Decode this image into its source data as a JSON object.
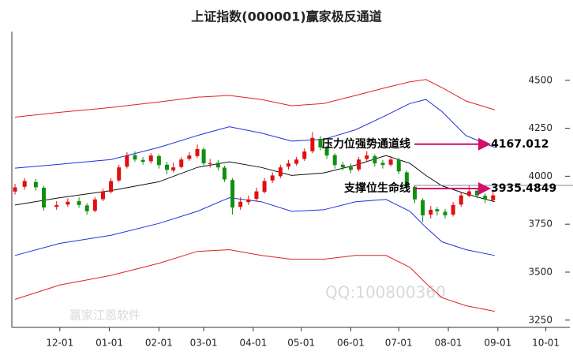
{
  "chart_data": {
    "type": "candlestick",
    "title": "上证指数(000001)赢家极反通道",
    "xlim": [
      0,
      349
    ],
    "ylim": [
      3212,
      4754
    ],
    "yticks": [
      3250,
      3500,
      3750,
      4000,
      4250,
      4500
    ],
    "xticks": [
      {
        "value": 30,
        "label": "12-01"
      },
      {
        "value": 61,
        "label": "01-01"
      },
      {
        "value": 92,
        "label": "02-01"
      },
      {
        "value": 120,
        "label": "03-01"
      },
      {
        "value": 151,
        "label": "04-01"
      },
      {
        "value": 181,
        "label": "05-01"
      },
      {
        "value": 212,
        "label": "06-01"
      },
      {
        "value": 242,
        "label": "07-01"
      },
      {
        "value": 273,
        "label": "08-01"
      },
      {
        "value": 304,
        "label": "09-01"
      },
      {
        "value": 334,
        "label": "10-01"
      }
    ],
    "up_color": "#e01010",
    "down_color": "#109010",
    "candles": {
      "x": [
        2,
        8,
        15,
        20,
        28,
        35,
        42,
        47,
        52,
        57,
        62,
        67,
        72,
        77,
        82,
        87,
        92,
        97,
        101,
        106,
        111,
        116,
        120,
        124,
        129,
        133,
        138,
        143,
        148,
        153,
        158,
        163,
        168,
        173,
        178,
        183,
        188,
        193,
        197,
        202,
        207,
        212,
        217,
        222,
        227,
        232,
        237,
        242,
        247,
        252,
        257,
        262,
        266,
        271,
        276,
        281,
        286,
        291,
        296,
        301
      ],
      "open": [
        3920,
        3945,
        3970,
        3940,
        3840,
        3852,
        3870,
        3848,
        3820,
        3880,
        3918,
        3978,
        4050,
        4110,
        4085,
        4078,
        4105,
        4060,
        4030,
        4048,
        4090,
        4105,
        4140,
        4065,
        4070,
        4045,
        3980,
        3840,
        3865,
        3882,
        3918,
        3978,
        4000,
        4050,
        4065,
        4090,
        4130,
        4195,
        4148,
        4110,
        4060,
        4048,
        4035,
        4090,
        4105,
        4070,
        4060,
        4085,
        4020,
        3945,
        3875,
        3800,
        3828,
        3815,
        3800,
        3852,
        3898,
        3925,
        3898,
        3875
      ],
      "close": [
        3942,
        3975,
        3942,
        3837,
        3850,
        3867,
        3850,
        3817,
        3879,
        3921,
        3975,
        4046,
        4108,
        4087,
        4075,
        4108,
        4058,
        4033,
        4046,
        4087,
        4108,
        4142,
        4067,
        4067,
        4046,
        3983,
        3837,
        3867,
        3879,
        3921,
        3975,
        4004,
        4046,
        4067,
        4087,
        4129,
        4200,
        4150,
        4108,
        4058,
        4046,
        4033,
        4087,
        4108,
        4067,
        4058,
        4087,
        4025,
        3942,
        3879,
        3796,
        3825,
        3817,
        3796,
        3850,
        3900,
        3921,
        3900,
        3879,
        3900
      ],
      "high": [
        3960,
        3990,
        3985,
        3950,
        3870,
        3885,
        3890,
        3860,
        3890,
        3935,
        3990,
        4060,
        4125,
        4130,
        4100,
        4120,
        4115,
        4075,
        4070,
        4100,
        4125,
        4165,
        4150,
        4090,
        4085,
        4055,
        3990,
        3890,
        3900,
        3940,
        3990,
        4020,
        4060,
        4085,
        4100,
        4145,
        4230,
        4210,
        4160,
        4120,
        4075,
        4065,
        4100,
        4130,
        4115,
        4085,
        4105,
        4095,
        4030,
        3955,
        3885,
        3845,
        3840,
        3830,
        3865,
        3915,
        3950,
        3935,
        3910,
        3918
      ],
      "low": [
        3905,
        3930,
        3925,
        3820,
        3825,
        3840,
        3835,
        3800,
        3812,
        3870,
        3910,
        3970,
        4040,
        4075,
        4060,
        4065,
        4040,
        4010,
        4020,
        4040,
        4080,
        4095,
        4055,
        4045,
        4030,
        3970,
        3800,
        3825,
        3850,
        3870,
        3910,
        3965,
        3990,
        4035,
        4055,
        4080,
        4120,
        4135,
        4090,
        4040,
        4030,
        4015,
        4025,
        4080,
        4050,
        4040,
        4050,
        4010,
        3925,
        3860,
        3760,
        3780,
        3795,
        3780,
        3790,
        3840,
        3890,
        3885,
        3860,
        3865
      ]
    },
    "x": [
      2,
      30,
      62,
      92,
      116,
      136,
      156,
      175,
      195,
      215,
      234,
      249,
      259,
      269,
      284,
      302
    ],
    "series": [
      {
        "color": "#e02020",
        "values": [
          4308,
          4333,
          4358,
          4387,
          4412,
          4421,
          4400,
          4367,
          4379,
          4421,
          4462,
          4492,
          4504,
          4462,
          4392,
          4346
        ]
      },
      {
        "color": "#2030e0",
        "values": [
          4042,
          4062,
          4087,
          4150,
          4212,
          4258,
          4225,
          4183,
          4192,
          4242,
          4317,
          4379,
          4400,
          4337,
          4212,
          4150
        ]
      },
      {
        "color": "#111111",
        "values": [
          3850,
          3888,
          3925,
          3971,
          4046,
          4075,
          4046,
          4004,
          4017,
          4058,
          4108,
          4067,
          4004,
          3950,
          3908,
          3867
        ]
      },
      {
        "color": "#2030e0",
        "values": [
          3587,
          3650,
          3692,
          3754,
          3817,
          3888,
          3867,
          3817,
          3825,
          3867,
          3879,
          3817,
          3733,
          3658,
          3617,
          3587
        ]
      },
      {
        "color": "#e02020",
        "values": [
          3358,
          3433,
          3483,
          3546,
          3608,
          3617,
          3587,
          3567,
          3567,
          3587,
          3587,
          3525,
          3442,
          3367,
          3325,
          3296
        ]
      }
    ],
    "annotations": [
      {
        "text": "压力位强势通道线",
        "value": 4167.012
      },
      {
        "text": "支撑位生命线",
        "value": 3935.4849
      }
    ],
    "arrow_color": "#d0106a",
    "watermarks": [
      "赢家江恩软件",
      "QQ:100800360"
    ]
  }
}
